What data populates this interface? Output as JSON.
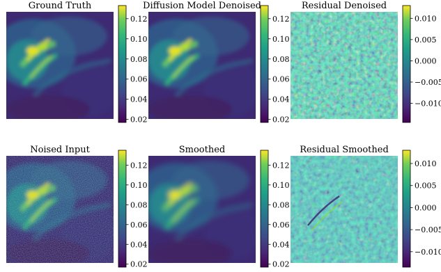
{
  "chart_data": [
    {
      "type": "heatmap",
      "title": "Ground Truth",
      "colormap": "viridis",
      "colorbar": {
        "vmin": 0.017,
        "vmax": 0.133,
        "ticks": [
          0.02,
          0.04,
          0.06,
          0.08,
          0.1,
          0.12
        ],
        "tick_labels": [
          "0.02",
          "0.04",
          "0.06",
          "0.08",
          "0.10",
          "0.12"
        ]
      }
    },
    {
      "type": "heatmap",
      "title": "Diffusion Model Denoised",
      "colormap": "viridis",
      "colorbar": {
        "vmin": 0.017,
        "vmax": 0.133,
        "ticks": [
          0.02,
          0.04,
          0.06,
          0.08,
          0.1,
          0.12
        ],
        "tick_labels": [
          "0.02",
          "0.04",
          "0.06",
          "0.08",
          "0.10",
          "0.12"
        ]
      }
    },
    {
      "type": "heatmap",
      "title": "Residual Denoised",
      "colormap": "viridis",
      "colorbar": {
        "vmin": -0.0145,
        "vmax": 0.013,
        "ticks": [
          -0.01,
          -0.005,
          0.0,
          0.005,
          0.01
        ],
        "tick_labels": [
          "−0.010",
          "−0.005",
          "0.000",
          "0.005",
          "0.010"
        ]
      }
    },
    {
      "type": "heatmap",
      "title": "Noised Input",
      "colormap": "viridis",
      "colorbar": {
        "vmin": 0.017,
        "vmax": 0.135,
        "ticks": [
          0.02,
          0.04,
          0.06,
          0.08,
          0.1,
          0.12
        ],
        "tick_labels": [
          "0.02",
          "0.04",
          "0.06",
          "0.08",
          "0.10",
          "0.12"
        ]
      }
    },
    {
      "type": "heatmap",
      "title": "Smoothed",
      "colormap": "viridis",
      "colorbar": {
        "vmin": 0.017,
        "vmax": 0.135,
        "ticks": [
          0.02,
          0.04,
          0.06,
          0.08,
          0.1,
          0.12
        ],
        "tick_labels": [
          "0.02",
          "0.04",
          "0.06",
          "0.08",
          "0.10",
          "0.12"
        ]
      }
    },
    {
      "type": "heatmap",
      "title": "Residual Smoothed",
      "colormap": "viridis",
      "colorbar": {
        "vmin": -0.0135,
        "vmax": 0.013,
        "ticks": [
          -0.01,
          -0.005,
          0.0,
          0.005,
          0.01
        ],
        "tick_labels": [
          "−0.010",
          "−0.005",
          "0.000",
          "0.005",
          "0.010"
        ]
      }
    }
  ]
}
